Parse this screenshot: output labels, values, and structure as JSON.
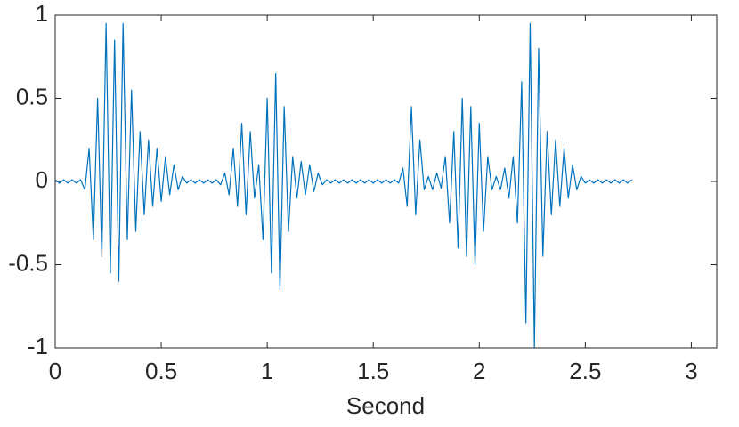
{
  "chart_data": {
    "type": "line",
    "xlabel": "Second",
    "x": [
      0,
      0.02,
      0.04,
      0.06,
      0.08,
      0.1,
      0.12,
      0.14,
      0.16,
      0.18,
      0.2,
      0.22,
      0.24,
      0.26,
      0.28,
      0.3,
      0.32,
      0.34,
      0.36,
      0.38,
      0.4,
      0.42,
      0.44,
      0.46,
      0.48,
      0.5,
      0.52,
      0.54,
      0.56,
      0.58,
      0.6,
      0.62,
      0.64,
      0.66,
      0.68,
      0.7,
      0.72,
      0.74,
      0.76,
      0.78,
      0.8,
      0.82,
      0.84,
      0.86,
      0.88,
      0.9,
      0.92,
      0.94,
      0.96,
      0.98,
      1,
      1.02,
      1.04,
      1.06,
      1.08,
      1.1,
      1.12,
      1.14,
      1.16,
      1.18,
      1.2,
      1.22,
      1.24,
      1.26,
      1.28,
      1.3,
      1.32,
      1.34,
      1.36,
      1.38,
      1.4,
      1.42,
      1.44,
      1.46,
      1.48,
      1.5,
      1.52,
      1.54,
      1.56,
      1.58,
      1.6,
      1.62,
      1.64,
      1.66,
      1.68,
      1.7,
      1.72,
      1.74,
      1.76,
      1.78,
      1.8,
      1.82,
      1.84,
      1.86,
      1.88,
      1.9,
      1.92,
      1.94,
      1.96,
      1.98,
      2,
      2.02,
      2.04,
      2.06,
      2.08,
      2.1,
      2.12,
      2.14,
      2.16,
      2.18,
      2.2,
      2.22,
      2.24,
      2.26,
      2.28,
      2.3,
      2.32,
      2.34,
      2.36,
      2.38,
      2.4,
      2.42,
      2.44,
      2.46,
      2.48,
      2.5,
      2.52,
      2.54,
      2.56,
      2.58,
      2.6,
      2.62,
      2.64,
      2.66,
      2.68,
      2.7,
      2.72
    ],
    "values": [
      0.01,
      -0.01,
      0.01,
      -0.01,
      0.01,
      -0.01,
      0.01,
      -0.05,
      0.2,
      -0.35,
      0.5,
      -0.45,
      0.95,
      -0.55,
      0.85,
      -0.6,
      0.95,
      -0.35,
      0.55,
      -0.3,
      0.3,
      -0.2,
      0.25,
      -0.15,
      0.2,
      -0.12,
      0.15,
      -0.08,
      0.1,
      -0.05,
      0.03,
      -0.01,
      0.01,
      -0.01,
      0.01,
      -0.01,
      0.01,
      -0.01,
      0.01,
      -0.02,
      0.05,
      -0.08,
      0.2,
      -0.15,
      0.35,
      -0.2,
      0.3,
      -0.1,
      0.1,
      -0.35,
      0.5,
      -0.55,
      0.65,
      -0.65,
      0.45,
      -0.3,
      0.15,
      -0.1,
      0.12,
      -0.08,
      0.1,
      -0.06,
      0.05,
      -0.02,
      0.01,
      -0.01,
      0.01,
      -0.01,
      0.01,
      -0.01,
      0.01,
      -0.01,
      0.01,
      -0.01,
      0.01,
      -0.01,
      0.01,
      -0.01,
      0.01,
      -0.01,
      0.01,
      -0.01,
      0.08,
      -0.15,
      0.45,
      -0.2,
      0.25,
      -0.05,
      0.03,
      -0.05,
      0.05,
      -0.04,
      0.15,
      -0.25,
      0.3,
      -0.4,
      0.5,
      -0.45,
      0.45,
      -0.5,
      0.35,
      -0.3,
      0.15,
      -0.05,
      0.03,
      -0.05,
      0.08,
      -0.1,
      0.15,
      -0.25,
      0.6,
      -0.85,
      0.95,
      -1.0,
      0.8,
      -0.45,
      0.3,
      -0.2,
      0.25,
      -0.15,
      0.2,
      -0.1,
      0.1,
      -0.05,
      0.03,
      -0.01,
      0.01,
      -0.01,
      0.01,
      -0.01,
      0.01,
      -0.01,
      0.01,
      -0.01,
      0.01,
      -0.01,
      0.01
    ],
    "color": "#0072bd",
    "xlim": [
      0,
      3.12
    ],
    "xticks": [
      0,
      0.5,
      1,
      1.5,
      2,
      2.5,
      3
    ],
    "ylim": [
      -1,
      1
    ],
    "yticks": [
      -1,
      -0.5,
      0,
      0.5,
      1
    ]
  }
}
